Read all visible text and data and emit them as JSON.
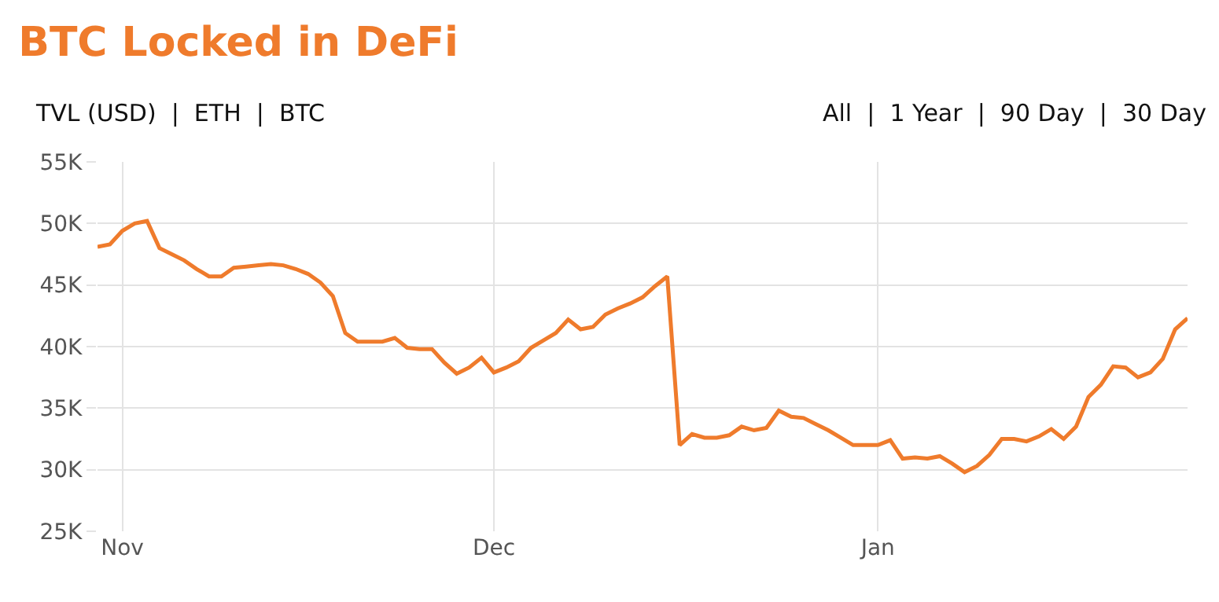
{
  "chart_data": {
    "type": "line",
    "title": "BTC Locked in DeFi",
    "subtitle": "TVL (USD)  |  ETH  |  BTC",
    "annotations": [
      "All  |  1 Year  |  90 Day  |  30 Day"
    ],
    "categories": [
      null,
      null,
      "Nov",
      null,
      null,
      null,
      null,
      null,
      null,
      null,
      null,
      null,
      null,
      null,
      null,
      null,
      null,
      null,
      null,
      null,
      null,
      null,
      null,
      null,
      null,
      null,
      null,
      null,
      null,
      null,
      null,
      null,
      "Dec",
      null,
      null,
      null,
      null,
      null,
      null,
      null,
      null,
      null,
      null,
      null,
      null,
      null,
      null,
      null,
      null,
      null,
      null,
      null,
      null,
      null,
      null,
      null,
      null,
      null,
      null,
      null,
      null,
      null,
      null,
      "Jan",
      null,
      null,
      null,
      null,
      null,
      null,
      null,
      null,
      null,
      null,
      null,
      null,
      null,
      null,
      null,
      null,
      null,
      null,
      null,
      null,
      null,
      null,
      null,
      null,
      null
    ],
    "series": [
      {
        "color": "#ef7b2c",
        "values": [
          48100,
          48300,
          49400,
          50000,
          50200,
          48000,
          47500,
          47000,
          46300,
          45700,
          45700,
          46400,
          46500,
          46600,
          46700,
          46600,
          46300,
          45900,
          45200,
          44100,
          41100,
          40400,
          40400,
          40400,
          40700,
          39900,
          39800,
          39800,
          38700,
          37800,
          38300,
          39100,
          37900,
          38300,
          38800,
          39900,
          40500,
          41100,
          42200,
          41400,
          41600,
          42600,
          43100,
          43500,
          44000,
          44900,
          45700,
          32000,
          32900,
          32600,
          32600,
          32800,
          33500,
          33200,
          33400,
          34800,
          34300,
          34200,
          33700,
          33200,
          32600,
          32000,
          32000,
          32000,
          32400,
          30900,
          31000,
          30900,
          31100,
          30500,
          29800,
          30300,
          31200,
          32500,
          32500,
          32300,
          32700,
          33300,
          32500,
          33500,
          35900,
          36900,
          38400,
          38300,
          37500,
          37900,
          39000,
          41400,
          42300
        ]
      }
    ],
    "ylim": [
      25000,
      55000
    ],
    "yticks": [
      {
        "value": 25000,
        "label": "25K"
      },
      {
        "value": 30000,
        "label": "30K"
      },
      {
        "value": 35000,
        "label": "35K"
      },
      {
        "value": 40000,
        "label": "40K"
      },
      {
        "value": 45000,
        "label": "45K"
      },
      {
        "value": 50000,
        "label": "50K"
      },
      {
        "value": 55000,
        "label": "55K"
      }
    ],
    "grid": true
  }
}
